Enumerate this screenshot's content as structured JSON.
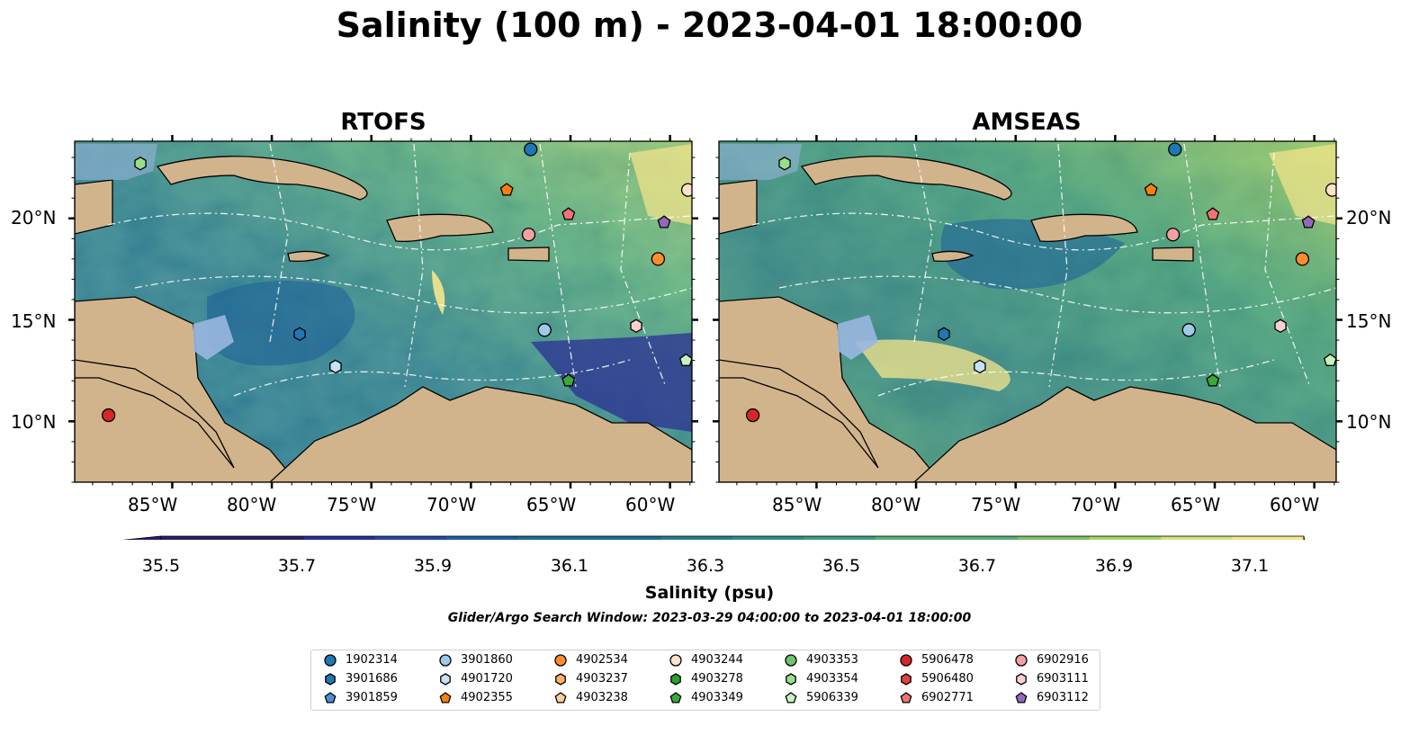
{
  "figure": {
    "title": "Salinity (100 m) - 2023-04-01 18:00:00",
    "left_panel_title": "RTOFS",
    "right_panel_title": "AMSEAS",
    "lon_ticks": [
      "85°W",
      "80°W",
      "75°W",
      "70°W",
      "65°W",
      "60°W"
    ],
    "lat_ticks": [
      "20°N",
      "15°N",
      "10°N"
    ],
    "extent": {
      "lon_min": -89.9,
      "lon_max": -58.9,
      "lat_min": 7.0,
      "lat_max": 23.8
    },
    "colorbar": {
      "label": "Salinity (psu)",
      "ticks": [
        "35.5",
        "35.7",
        "35.9",
        "36.1",
        "36.3",
        "36.5",
        "36.7",
        "36.9",
        "37.1"
      ],
      "min": 35.5,
      "max": 37.1,
      "colors": [
        "#2a1d6a",
        "#2b2f93",
        "#26479d",
        "#1c5f99",
        "#196f8e",
        "#267d89",
        "#2f8d85",
        "#3c9d7e",
        "#58b175",
        "#7cc36a",
        "#a7d464",
        "#d5e27c",
        "#f6e68c"
      ]
    },
    "search_window": "Glider/Argo Search Window: 2023-03-29 04:00:00 to 2023-04-01 18:00:00"
  },
  "legend": [
    {
      "id": "1902314",
      "color": "#1f77b4",
      "shape": "circle"
    },
    {
      "id": "3901686",
      "color": "#1f77b4",
      "shape": "hexagon"
    },
    {
      "id": "3901859",
      "color": "#4a90d9",
      "shape": "pentagon"
    },
    {
      "id": "3901860",
      "color": "#9ecae9",
      "shape": "circle"
    },
    {
      "id": "4901720",
      "color": "#c6e2f5",
      "shape": "hexagon"
    },
    {
      "id": "4902355",
      "color": "#ff7f0e",
      "shape": "pentagon"
    },
    {
      "id": "4902534",
      "color": "#ff8c2e",
      "shape": "circle"
    },
    {
      "id": "4903237",
      "color": "#ffb26b",
      "shape": "hexagon"
    },
    {
      "id": "4903238",
      "color": "#ffcf9b",
      "shape": "pentagon"
    },
    {
      "id": "4903244",
      "color": "#fde2c8",
      "shape": "circle"
    },
    {
      "id": "4903278",
      "color": "#2ca02c",
      "shape": "hexagon"
    },
    {
      "id": "4903349",
      "color": "#3aa83a",
      "shape": "pentagon"
    },
    {
      "id": "4903353",
      "color": "#6cc46c",
      "shape": "circle"
    },
    {
      "id": "4903354",
      "color": "#98df8a",
      "shape": "hexagon"
    },
    {
      "id": "5906339",
      "color": "#c7f2bd",
      "shape": "pentagon"
    },
    {
      "id": "5906478",
      "color": "#d62728",
      "shape": "circle"
    },
    {
      "id": "5906480",
      "color": "#e04040",
      "shape": "hexagon"
    },
    {
      "id": "6902771",
      "color": "#ef7373",
      "shape": "pentagon"
    },
    {
      "id": "6902916",
      "color": "#f4a0a0",
      "shape": "circle"
    },
    {
      "id": "6903111",
      "color": "#fbcfd0",
      "shape": "hexagon"
    },
    {
      "id": "6903112",
      "color": "#9467bd",
      "shape": "pentagon"
    }
  ],
  "floats": [
    {
      "id": "1902314",
      "lon": -67.0,
      "lat": 23.4
    },
    {
      "id": "4903354",
      "lon": -86.6,
      "lat": 22.7
    },
    {
      "id": "4903244",
      "lon": -59.1,
      "lat": 21.4
    },
    {
      "id": "4902355",
      "lon": -68.2,
      "lat": 21.4
    },
    {
      "id": "6902771",
      "lon": -65.1,
      "lat": 20.2
    },
    {
      "id": "6903112",
      "lon": -60.3,
      "lat": 19.8
    },
    {
      "id": "6902916",
      "lon": -67.1,
      "lat": 19.2
    },
    {
      "id": "4902534",
      "lon": -60.6,
      "lat": 18.0
    },
    {
      "id": "6903111",
      "lon": -61.7,
      "lat": 14.7
    },
    {
      "id": "3901860",
      "lon": -66.3,
      "lat": 14.5
    },
    {
      "id": "3901686",
      "lon": -78.6,
      "lat": 14.3
    },
    {
      "id": "5906339",
      "lon": -59.2,
      "lat": 13.0
    },
    {
      "id": "4901720",
      "lon": -76.8,
      "lat": 12.7
    },
    {
      "id": "4903349",
      "lon": -65.1,
      "lat": 12.0
    },
    {
      "id": "5906478",
      "lon": -88.2,
      "lat": 10.3
    }
  ]
}
